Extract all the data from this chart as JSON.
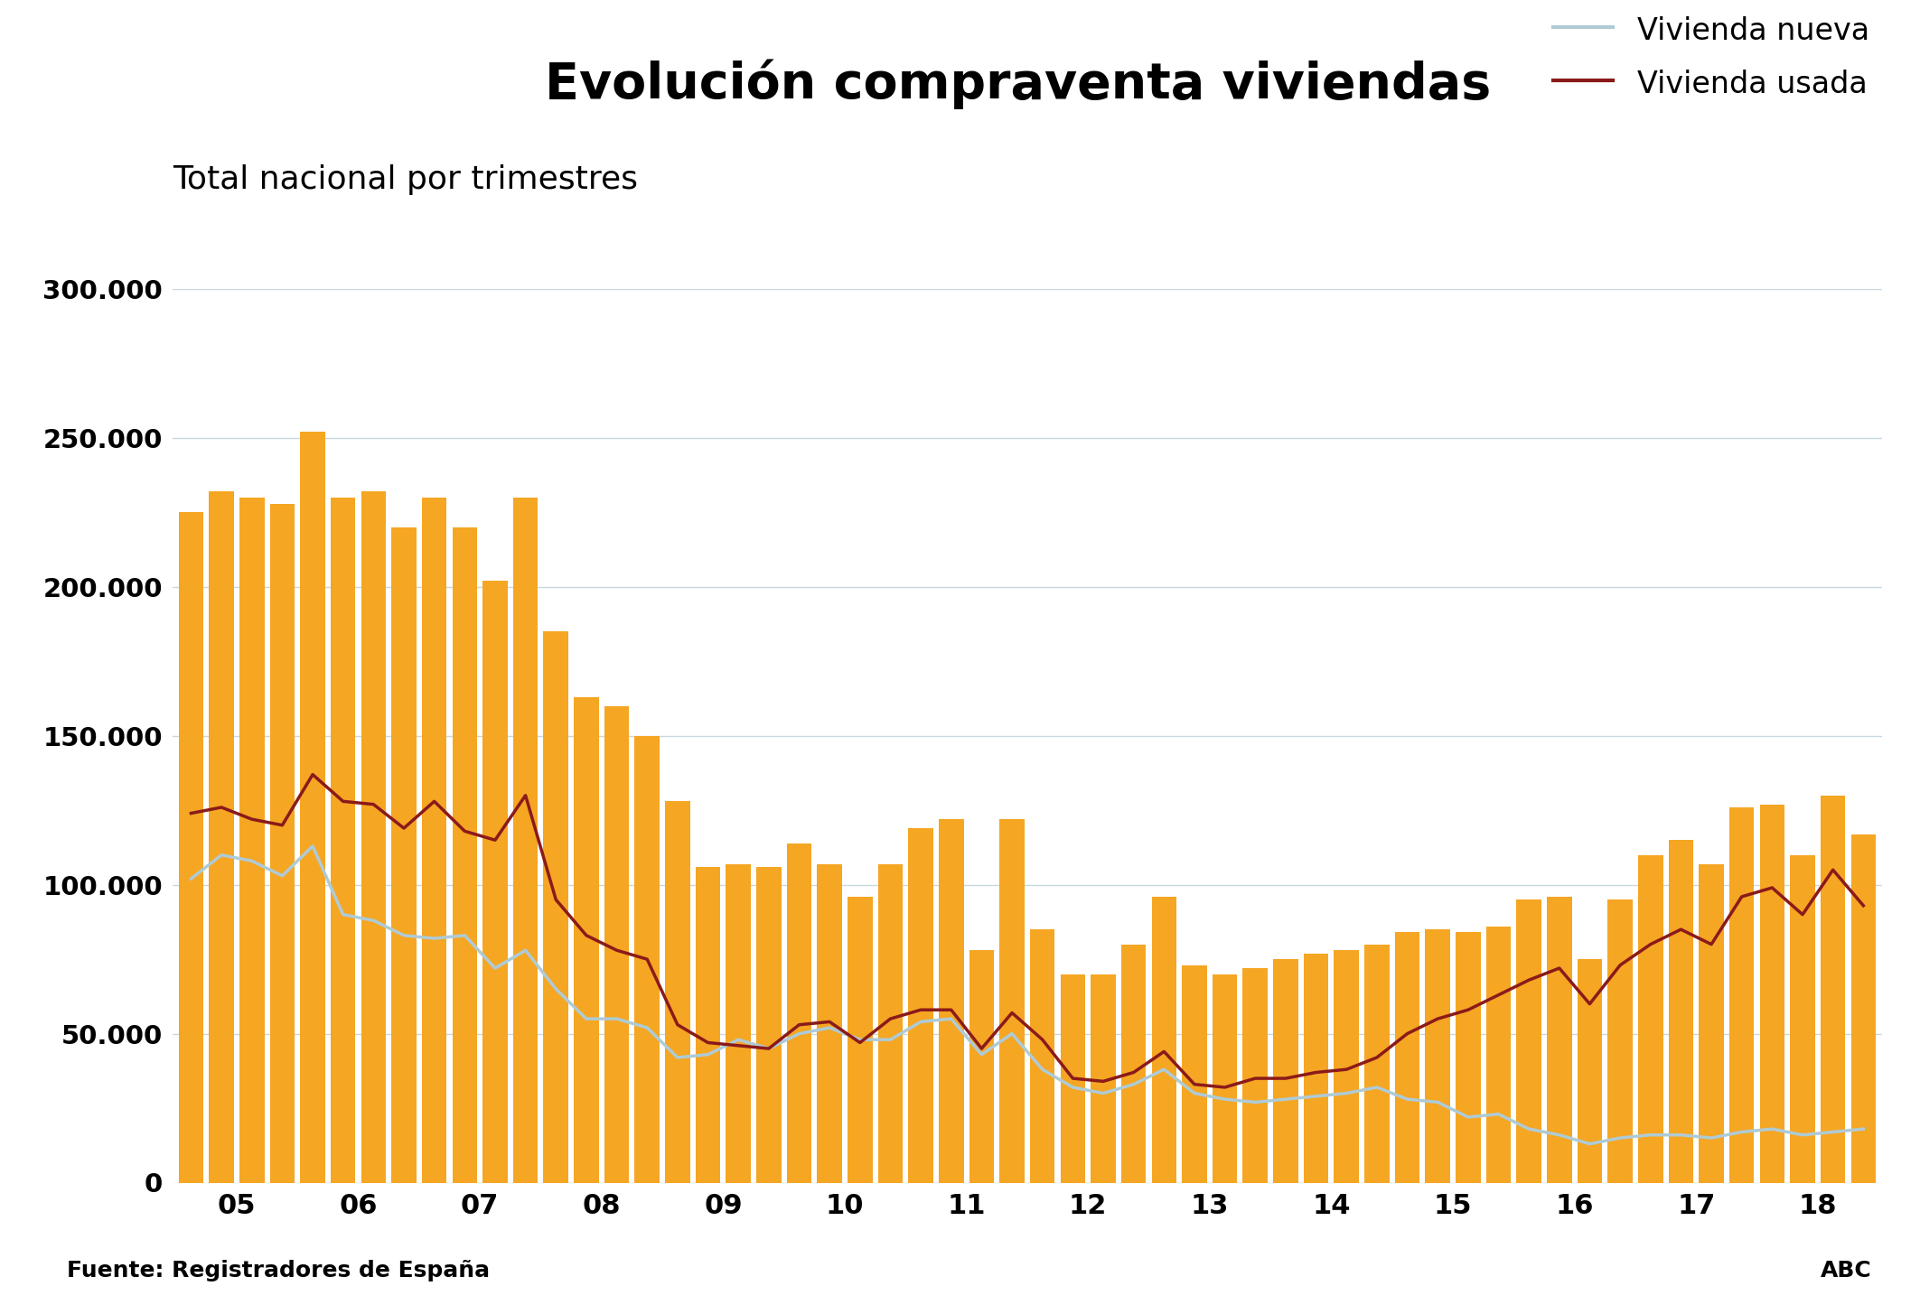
{
  "title": "Evolución compraventa viviendas",
  "subtitle": "Total nacional por trimestres",
  "source_left": "Fuente: Registradores de España",
  "source_right": "ABC",
  "ylim": [
    0,
    300000
  ],
  "yticks": [
    0,
    50000,
    100000,
    150000,
    200000,
    250000,
    300000
  ],
  "ytick_labels": [
    "0",
    "50.000",
    "100.000",
    "150.000",
    "200.000",
    "250.000",
    "300.000"
  ],
  "bar_color": "#F5A623",
  "line_nueva_color": "#AECBD6",
  "line_usada_color": "#8B1A1A",
  "background_color": "#FFFFFF",
  "grid_color": "#C8D8E0",
  "years": [
    "05",
    "06",
    "07",
    "08",
    "09",
    "10",
    "11",
    "12",
    "13",
    "14",
    "15",
    "16",
    "17",
    "18"
  ],
  "total": [
    225000,
    232000,
    230000,
    228000,
    252000,
    230000,
    232000,
    220000,
    230000,
    220000,
    202000,
    230000,
    185000,
    163000,
    160000,
    150000,
    128000,
    106000,
    107000,
    106000,
    114000,
    107000,
    96000,
    107000,
    119000,
    122000,
    78000,
    122000,
    85000,
    70000,
    70000,
    80000,
    96000,
    73000,
    70000,
    72000,
    75000,
    77000,
    78000,
    80000,
    84000,
    85000,
    84000,
    86000,
    95000,
    96000,
    75000,
    95000,
    110000,
    115000,
    107000,
    126000,
    127000,
    110000,
    130000,
    117000
  ],
  "vivienda_nueva": [
    102000,
    110000,
    108000,
    103000,
    113000,
    90000,
    88000,
    83000,
    82000,
    83000,
    72000,
    78000,
    65000,
    55000,
    55000,
    52000,
    42000,
    43000,
    48000,
    45000,
    50000,
    52000,
    48000,
    48000,
    54000,
    55000,
    43000,
    50000,
    38000,
    32000,
    30000,
    33000,
    38000,
    30000,
    28000,
    27000,
    28000,
    29000,
    30000,
    32000,
    28000,
    27000,
    22000,
    23000,
    18000,
    16000,
    13000,
    15000,
    16000,
    16000,
    15000,
    17000,
    18000,
    16000,
    17000,
    18000
  ],
  "vivienda_usada": [
    124000,
    126000,
    122000,
    120000,
    137000,
    128000,
    127000,
    119000,
    128000,
    118000,
    115000,
    130000,
    95000,
    83000,
    78000,
    75000,
    53000,
    47000,
    46000,
    45000,
    53000,
    54000,
    47000,
    55000,
    58000,
    58000,
    45000,
    57000,
    48000,
    35000,
    34000,
    37000,
    44000,
    33000,
    32000,
    35000,
    35000,
    37000,
    38000,
    42000,
    50000,
    55000,
    58000,
    63000,
    68000,
    72000,
    60000,
    73000,
    80000,
    85000,
    80000,
    96000,
    99000,
    90000,
    105000,
    93000
  ]
}
